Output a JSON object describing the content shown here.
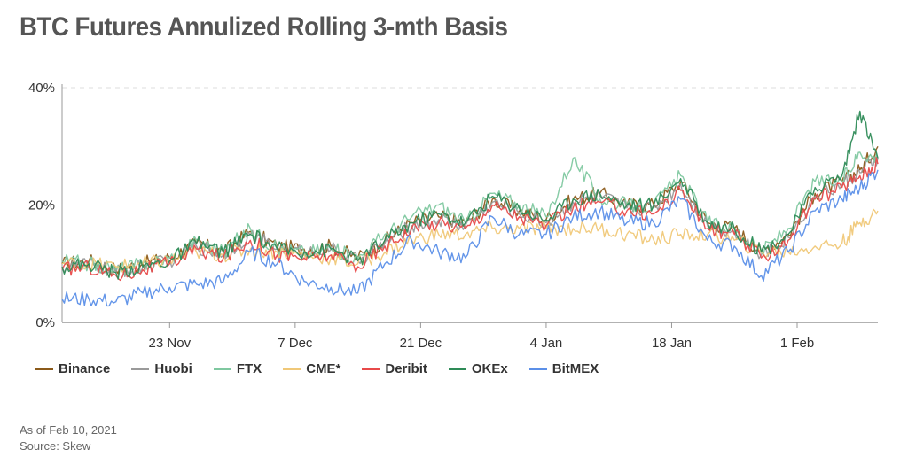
{
  "title": "BTC Futures Annulized Rolling 3-mth Basis",
  "footnote": {
    "as_of": "As of Feb 10, 2021",
    "source": "Source: Skew"
  },
  "chart_data": {
    "type": "line",
    "title": "BTC Futures Annulized Rolling 3-mth Basis",
    "xlabel": "",
    "ylabel": "",
    "x_range": [
      "2020-11-11",
      "2021-02-10"
    ],
    "ylim": [
      0,
      40
    ],
    "y_ticks": [
      0,
      20,
      40
    ],
    "y_tick_labels": [
      "0%",
      "20%",
      "40%"
    ],
    "x_ticks": [
      "2020-11-23",
      "2020-12-07",
      "2020-12-21",
      "2021-01-04",
      "2021-01-18",
      "2021-02-01"
    ],
    "x_tick_labels": [
      "23 Nov",
      "7 Dec",
      "21 Dec",
      "4 Jan",
      "18 Jan",
      "1 Feb"
    ],
    "grid": "horizontal dashed",
    "legend_position": "bottom",
    "series": [
      {
        "name": "Binance",
        "color": "#8B5A1A",
        "x": [
          "2020-11-11",
          "2020-11-14",
          "2020-11-17",
          "2020-11-20",
          "2020-11-23",
          "2020-11-26",
          "2020-11-29",
          "2020-12-02",
          "2020-12-05",
          "2020-12-08",
          "2020-12-11",
          "2020-12-14",
          "2020-12-17",
          "2020-12-20",
          "2020-12-23",
          "2020-12-26",
          "2020-12-29",
          "2021-01-01",
          "2021-01-04",
          "2021-01-07",
          "2021-01-10",
          "2021-01-13",
          "2021-01-16",
          "2021-01-19",
          "2021-01-22",
          "2021-01-25",
          "2021-01-28",
          "2021-01-31",
          "2021-02-03",
          "2021-02-06",
          "2021-02-08",
          "2021-02-10"
        ],
        "y": [
          10,
          10.5,
          9,
          10,
          11,
          13.5,
          12,
          15.5,
          13,
          12.5,
          13,
          11,
          14,
          17,
          18,
          17,
          21,
          19,
          17.5,
          21,
          22,
          20,
          20,
          24,
          17,
          16,
          12,
          15,
          22,
          24,
          26,
          30
        ]
      },
      {
        "name": "Huobi",
        "color": "#9A9A9A",
        "x": [
          "2020-11-11",
          "2020-11-14",
          "2020-11-17",
          "2020-11-20",
          "2020-11-23",
          "2020-11-26",
          "2020-11-29",
          "2020-12-02",
          "2020-12-05",
          "2020-12-08",
          "2020-12-11",
          "2020-12-14",
          "2020-12-17",
          "2020-12-20",
          "2020-12-23",
          "2020-12-26",
          "2020-12-29",
          "2021-01-01",
          "2021-01-04",
          "2021-01-07",
          "2021-01-10",
          "2021-01-13",
          "2021-01-16",
          "2021-01-19",
          "2021-01-22",
          "2021-01-25",
          "2021-01-28",
          "2021-01-31",
          "2021-02-03",
          "2021-02-06",
          "2021-02-08",
          "2021-02-10"
        ],
        "y": [
          9.5,
          10,
          8.5,
          9.5,
          10.5,
          13,
          11.5,
          15,
          12.5,
          12,
          12.5,
          10.5,
          13.5,
          16.5,
          17.5,
          16.5,
          20.5,
          18.5,
          17,
          20.5,
          21.5,
          19.5,
          19.5,
          23.5,
          16.5,
          15.5,
          11.5,
          14.5,
          21.5,
          23.5,
          25.5,
          28
        ]
      },
      {
        "name": "FTX",
        "color": "#7FC8A0",
        "x": [
          "2020-11-11",
          "2020-11-14",
          "2020-11-17",
          "2020-11-20",
          "2020-11-23",
          "2020-11-26",
          "2020-11-29",
          "2020-12-02",
          "2020-12-05",
          "2020-12-08",
          "2020-12-11",
          "2020-12-14",
          "2020-12-17",
          "2020-12-20",
          "2020-12-23",
          "2020-12-26",
          "2020-12-29",
          "2021-01-01",
          "2021-01-04",
          "2021-01-07",
          "2021-01-10",
          "2021-01-13",
          "2021-01-16",
          "2021-01-19",
          "2021-01-22",
          "2021-01-25",
          "2021-01-28",
          "2021-01-31",
          "2021-02-03",
          "2021-02-06",
          "2021-02-08",
          "2021-02-10"
        ],
        "y": [
          10.5,
          10,
          9,
          10,
          11,
          14,
          12,
          16,
          12.5,
          12,
          12.5,
          11,
          15,
          18,
          20,
          17,
          22,
          20,
          18,
          28,
          21,
          20,
          20,
          25,
          17,
          16,
          12,
          16,
          24,
          24,
          29,
          28
        ]
      },
      {
        "name": "CME*",
        "color": "#F0C878",
        "x": [
          "2020-11-11",
          "2020-11-14",
          "2020-11-17",
          "2020-11-20",
          "2020-11-23",
          "2020-11-26",
          "2020-11-29",
          "2020-12-02",
          "2020-12-05",
          "2020-12-08",
          "2020-12-11",
          "2020-12-14",
          "2020-12-17",
          "2020-12-20",
          "2020-12-23",
          "2020-12-26",
          "2020-12-29",
          "2021-01-01",
          "2021-01-04",
          "2021-01-07",
          "2021-01-10",
          "2021-01-13",
          "2021-01-16",
          "2021-01-19",
          "2021-01-22",
          "2021-01-25",
          "2021-01-28",
          "2021-01-31",
          "2021-02-03",
          "2021-02-06",
          "2021-02-08",
          "2021-02-10"
        ],
        "y": [
          10,
          10,
          9.5,
          10,
          10.5,
          12,
          11.5,
          12.5,
          12,
          11.5,
          11,
          10,
          12,
          14,
          15,
          15,
          16,
          16,
          16,
          16,
          16,
          15,
          14,
          15,
          15,
          14,
          12,
          12,
          13,
          13.5,
          17,
          19
        ]
      },
      {
        "name": "Deribit",
        "color": "#E84A4A",
        "x": [
          "2020-11-11",
          "2020-11-14",
          "2020-11-17",
          "2020-11-20",
          "2020-11-23",
          "2020-11-26",
          "2020-11-29",
          "2020-12-02",
          "2020-12-05",
          "2020-12-08",
          "2020-12-11",
          "2020-12-14",
          "2020-12-17",
          "2020-12-20",
          "2020-12-23",
          "2020-12-26",
          "2020-12-29",
          "2021-01-01",
          "2021-01-04",
          "2021-01-07",
          "2021-01-10",
          "2021-01-13",
          "2021-01-16",
          "2021-01-19",
          "2021-01-22",
          "2021-01-25",
          "2021-01-28",
          "2021-01-31",
          "2021-02-03",
          "2021-02-06",
          "2021-02-08",
          "2021-02-10"
        ],
        "y": [
          9,
          9.5,
          8,
          9,
          10,
          12.5,
          11,
          14,
          11.5,
          11,
          11.5,
          9.5,
          13,
          16,
          17,
          16,
          20,
          18,
          16.5,
          19.5,
          20.5,
          19,
          18.5,
          22.5,
          16,
          15,
          11,
          14,
          21,
          23,
          25,
          27
        ]
      },
      {
        "name": "OKEx",
        "color": "#2E8B57",
        "x": [
          "2020-11-11",
          "2020-11-14",
          "2020-11-17",
          "2020-11-20",
          "2020-11-23",
          "2020-11-26",
          "2020-11-29",
          "2020-12-02",
          "2020-12-05",
          "2020-12-08",
          "2020-12-11",
          "2020-12-14",
          "2020-12-17",
          "2020-12-20",
          "2020-12-23",
          "2020-12-26",
          "2020-12-29",
          "2021-01-01",
          "2021-01-04",
          "2021-01-07",
          "2021-01-10",
          "2021-01-13",
          "2021-01-16",
          "2021-01-19",
          "2021-01-22",
          "2021-01-25",
          "2021-01-28",
          "2021-01-31",
          "2021-02-03",
          "2021-02-06",
          "2021-02-08",
          "2021-02-10"
        ],
        "y": [
          9.5,
          10,
          8.5,
          9.5,
          10.5,
          13.5,
          12,
          15,
          12.5,
          12,
          12.5,
          10.5,
          14,
          17,
          18.5,
          17,
          21.5,
          19.5,
          17.5,
          21,
          22,
          20,
          20,
          24.5,
          17,
          16,
          12,
          15,
          23,
          25,
          36,
          28
        ]
      },
      {
        "name": "BitMEX",
        "color": "#5B8FE8",
        "x": [
          "2020-11-11",
          "2020-11-14",
          "2020-11-17",
          "2020-11-20",
          "2020-11-23",
          "2020-11-26",
          "2020-11-29",
          "2020-12-02",
          "2020-12-05",
          "2020-12-08",
          "2020-12-11",
          "2020-12-14",
          "2020-12-17",
          "2020-12-20",
          "2020-12-23",
          "2020-12-26",
          "2020-12-29",
          "2021-01-01",
          "2021-01-04",
          "2021-01-07",
          "2021-01-10",
          "2021-01-13",
          "2021-01-16",
          "2021-01-19",
          "2021-01-22",
          "2021-01-25",
          "2021-01-28",
          "2021-01-31",
          "2021-02-03",
          "2021-02-06",
          "2021-02-08",
          "2021-02-10"
        ],
        "y": [
          4,
          4,
          3.5,
          5,
          6,
          6.5,
          7,
          12,
          10,
          7,
          6,
          5,
          10,
          14,
          12,
          11,
          18,
          15,
          15,
          18,
          19,
          17,
          17,
          21,
          14,
          13,
          8,
          12,
          19,
          21,
          23,
          26
        ]
      }
    ]
  }
}
